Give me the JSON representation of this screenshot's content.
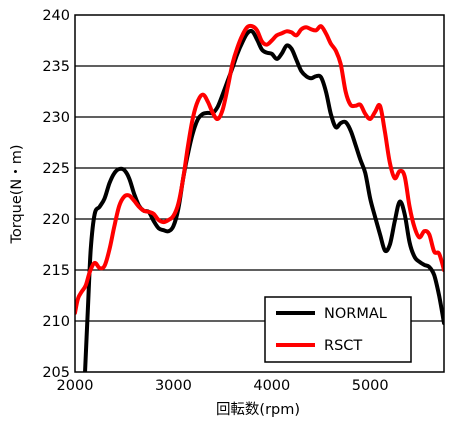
{
  "chart_data": {
    "type": "line",
    "title": "",
    "xlabel": "回転数(rpm)",
    "ylabel": "Torque(N・m)",
    "xlim": [
      2000,
      5750
    ],
    "ylim": [
      205,
      240
    ],
    "x_ticks": [
      2000,
      3000,
      4000,
      5000
    ],
    "y_ticks": [
      205,
      210,
      215,
      220,
      225,
      230,
      235,
      240
    ],
    "grid": "horizontal",
    "legend_position": "bottom-right",
    "series": [
      {
        "name": "NORMAL",
        "color": "#000000",
        "points": [
          [
            2100,
            204.5
          ],
          [
            2130,
            211
          ],
          [
            2160,
            217
          ],
          [
            2200,
            220.5
          ],
          [
            2250,
            221.2
          ],
          [
            2300,
            222
          ],
          [
            2350,
            223.5
          ],
          [
            2400,
            224.5
          ],
          [
            2450,
            224.9
          ],
          [
            2500,
            224.8
          ],
          [
            2550,
            224
          ],
          [
            2600,
            222.5
          ],
          [
            2650,
            221.3
          ],
          [
            2700,
            220.8
          ],
          [
            2750,
            220.7
          ],
          [
            2800,
            219.8
          ],
          [
            2850,
            219.1
          ],
          [
            2900,
            218.9
          ],
          [
            2950,
            218.8
          ],
          [
            3000,
            219.3
          ],
          [
            3050,
            221
          ],
          [
            3100,
            224
          ],
          [
            3150,
            226.5
          ],
          [
            3200,
            228.5
          ],
          [
            3250,
            229.8
          ],
          [
            3300,
            230.3
          ],
          [
            3350,
            230.4
          ],
          [
            3400,
            230.4
          ],
          [
            3450,
            231
          ],
          [
            3500,
            232.2
          ],
          [
            3550,
            233.5
          ],
          [
            3600,
            234.8
          ],
          [
            3650,
            236.2
          ],
          [
            3700,
            237.3
          ],
          [
            3750,
            238.2
          ],
          [
            3800,
            238.4
          ],
          [
            3850,
            237.6
          ],
          [
            3900,
            236.6
          ],
          [
            3950,
            236.3
          ],
          [
            4000,
            236.2
          ],
          [
            4050,
            235.7
          ],
          [
            4100,
            236.2
          ],
          [
            4150,
            237
          ],
          [
            4200,
            236.7
          ],
          [
            4250,
            235.6
          ],
          [
            4300,
            234.5
          ],
          [
            4350,
            234
          ],
          [
            4400,
            233.8
          ],
          [
            4450,
            234
          ],
          [
            4500,
            233.9
          ],
          [
            4550,
            232.5
          ],
          [
            4600,
            230.3
          ],
          [
            4650,
            229
          ],
          [
            4700,
            229.4
          ],
          [
            4750,
            229.5
          ],
          [
            4800,
            228.7
          ],
          [
            4850,
            227.3
          ],
          [
            4900,
            225.8
          ],
          [
            4950,
            224.5
          ],
          [
            5000,
            222
          ],
          [
            5050,
            220.2
          ],
          [
            5100,
            218.5
          ],
          [
            5150,
            216.9
          ],
          [
            5200,
            217.5
          ],
          [
            5250,
            219.8
          ],
          [
            5300,
            221.7
          ],
          [
            5350,
            220.5
          ],
          [
            5400,
            217.7
          ],
          [
            5450,
            216.3
          ],
          [
            5500,
            215.8
          ],
          [
            5550,
            215.5
          ],
          [
            5600,
            215.3
          ],
          [
            5650,
            214.5
          ],
          [
            5700,
            212.5
          ],
          [
            5750,
            209.8
          ]
        ]
      },
      {
        "name": "RSCT",
        "color": "#ff0000",
        "points": [
          [
            2000,
            210.8
          ],
          [
            2030,
            212.2
          ],
          [
            2070,
            212.9
          ],
          [
            2110,
            213.5
          ],
          [
            2150,
            214.8
          ],
          [
            2200,
            215.7
          ],
          [
            2250,
            215.2
          ],
          [
            2300,
            215.4
          ],
          [
            2350,
            217
          ],
          [
            2400,
            219.3
          ],
          [
            2450,
            221.3
          ],
          [
            2500,
            222.2
          ],
          [
            2550,
            222.3
          ],
          [
            2600,
            221.8
          ],
          [
            2650,
            221.2
          ],
          [
            2700,
            220.8
          ],
          [
            2750,
            220.7
          ],
          [
            2800,
            220.5
          ],
          [
            2850,
            219.9
          ],
          [
            2900,
            219.7
          ],
          [
            2950,
            219.9
          ],
          [
            3000,
            220.3
          ],
          [
            3050,
            221.5
          ],
          [
            3100,
            224
          ],
          [
            3150,
            227.3
          ],
          [
            3200,
            230
          ],
          [
            3250,
            231.6
          ],
          [
            3300,
            232.2
          ],
          [
            3350,
            231.5
          ],
          [
            3400,
            230.4
          ],
          [
            3450,
            229.8
          ],
          [
            3500,
            230.7
          ],
          [
            3550,
            232.8
          ],
          [
            3600,
            235.2
          ],
          [
            3650,
            236.8
          ],
          [
            3700,
            238
          ],
          [
            3750,
            238.8
          ],
          [
            3800,
            238.9
          ],
          [
            3850,
            238.5
          ],
          [
            3900,
            237.4
          ],
          [
            3950,
            237.1
          ],
          [
            4000,
            237.5
          ],
          [
            4050,
            238
          ],
          [
            4100,
            238.2
          ],
          [
            4150,
            238.4
          ],
          [
            4200,
            238.3
          ],
          [
            4250,
            238
          ],
          [
            4300,
            238.6
          ],
          [
            4350,
            238.8
          ],
          [
            4400,
            238.6
          ],
          [
            4450,
            238.5
          ],
          [
            4500,
            238.9
          ],
          [
            4550,
            238.2
          ],
          [
            4600,
            237.2
          ],
          [
            4650,
            236.5
          ],
          [
            4700,
            235.2
          ],
          [
            4750,
            232.5
          ],
          [
            4800,
            231.2
          ],
          [
            4850,
            231.1
          ],
          [
            4900,
            231.2
          ],
          [
            4950,
            230.3
          ],
          [
            5000,
            229.8
          ],
          [
            5050,
            230.5
          ],
          [
            5100,
            231.1
          ],
          [
            5150,
            228.5
          ],
          [
            5200,
            225.5
          ],
          [
            5250,
            224
          ],
          [
            5300,
            224.7
          ],
          [
            5350,
            224.2
          ],
          [
            5400,
            221.2
          ],
          [
            5450,
            219.2
          ],
          [
            5500,
            218.2
          ],
          [
            5550,
            218.8
          ],
          [
            5600,
            218.5
          ],
          [
            5650,
            216.8
          ],
          [
            5700,
            216.6
          ],
          [
            5750,
            215
          ]
        ]
      }
    ]
  }
}
